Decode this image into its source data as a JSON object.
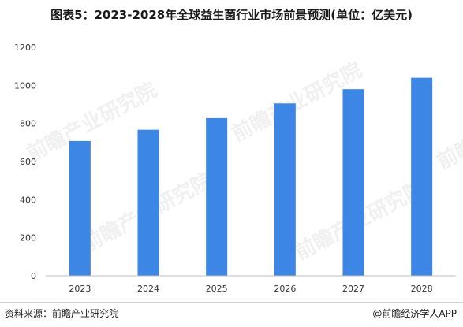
{
  "title": "图表5：2023-2028年全球益生菌行业市场前景预测(单位：亿美元)",
  "footer": {
    "source": "资料来源：前瞻产业研究院",
    "brand": "@前瞻经济学人APP"
  },
  "watermark_text": "前瞻产业研究院",
  "colors": {
    "bar": "#3c86e6",
    "axis": "#bfbfbf",
    "grid": "#e6e6e6"
  },
  "chart_data": {
    "type": "bar",
    "title": "图表5：2023-2028年全球益生菌行业市场前景预测(单位：亿美元)",
    "categories": [
      "2023",
      "2024",
      "2025",
      "2026",
      "2027",
      "2028"
    ],
    "values": [
      708,
      767,
      828,
      905,
      980,
      1040
    ],
    "ylim": [
      0,
      1200
    ],
    "yticks": [
      0,
      200,
      400,
      600,
      800,
      1000,
      1200
    ],
    "xlabel": "",
    "ylabel": "",
    "grid": false,
    "legend": "none"
  }
}
